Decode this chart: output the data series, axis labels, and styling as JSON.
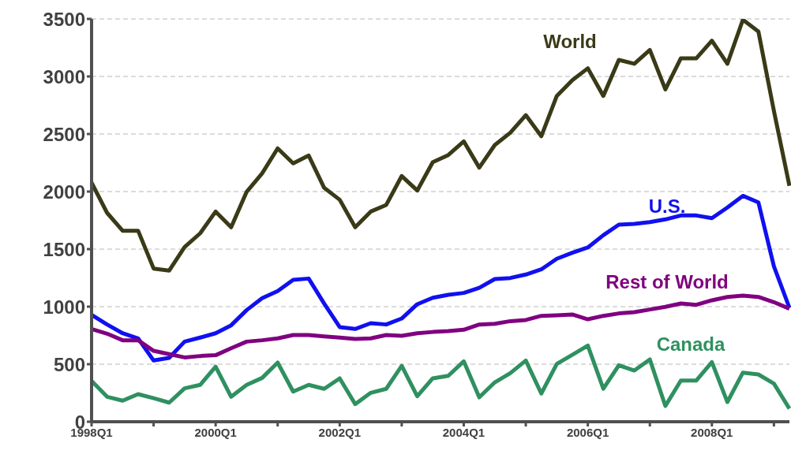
{
  "chart_data": {
    "type": "line",
    "categories": [
      "1998Q1",
      null,
      null,
      null,
      null,
      null,
      null,
      null,
      "2000Q1",
      null,
      null,
      null,
      null,
      null,
      null,
      null,
      "2002Q1",
      null,
      null,
      null,
      null,
      null,
      null,
      null,
      "2004Q1",
      null,
      null,
      null,
      null,
      null,
      null,
      null,
      "2006Q1",
      null,
      null,
      null,
      null,
      null,
      null,
      null,
      "2008Q1",
      null,
      null,
      null,
      null,
      null
    ],
    "ylim": [
      0,
      3500
    ],
    "yticks": [
      0,
      500,
      1000,
      1500,
      2000,
      2500,
      3000,
      3500
    ],
    "grid": "y",
    "legend": false,
    "marker": "none",
    "line_style": "solid",
    "series": [
      {
        "name": "World",
        "color": "#3a3a18",
        "values": [
          2077,
          1815,
          1660,
          1660,
          1331,
          1313,
          1518,
          1637,
          1826,
          1690,
          1998,
          2158,
          2375,
          2245,
          2313,
          2032,
          1929,
          1690,
          1826,
          1884,
          2135,
          2009,
          2255,
          2317,
          2436,
          2208,
          2404,
          2511,
          2664,
          2481,
          2831,
          2968,
          3071,
          2831,
          3144,
          3110,
          3230,
          2888,
          3158,
          3158,
          3311,
          3110,
          3493,
          3390,
          2700,
          2050
        ]
      },
      {
        "name": "U.S.",
        "color": "#1010f0",
        "values": [
          929,
          845,
          769,
          724,
          532,
          555,
          696,
          731,
          769,
          838,
          970,
          1073,
          1135,
          1233,
          1244,
          1027,
          822,
          806,
          856,
          845,
          897,
          1021,
          1077,
          1103,
          1119,
          1164,
          1240,
          1249,
          1279,
          1324,
          1416,
          1468,
          1514,
          1621,
          1712,
          1719,
          1735,
          1758,
          1792,
          1792,
          1769,
          1861,
          1963,
          1906,
          1350,
          990
        ]
      },
      {
        "name": "Rest of World",
        "color": "#800080",
        "values": [
          806,
          765,
          708,
          708,
          616,
          587,
          559,
          571,
          578,
          639,
          696,
          708,
          724,
          753,
          753,
          742,
          731,
          719,
          724,
          753,
          747,
          769,
          780,
          788,
          799,
          845,
          851,
          874,
          884,
          920,
          925,
          932,
          890,
          920,
          941,
          952,
          975,
          998,
          1027,
          1016,
          1055,
          1084,
          1096,
          1084,
          1039,
          982
        ]
      },
      {
        "name": "Canada",
        "color": "#2f9060",
        "values": [
          354,
          217,
          183,
          240,
          205,
          166,
          290,
          320,
          479,
          217,
          320,
          381,
          514,
          262,
          320,
          286,
          377,
          153,
          251,
          286,
          486,
          221,
          377,
          399,
          525,
          212,
          342,
          422,
          532,
          245,
          502,
          582,
          662,
          286,
          491,
          445,
          541,
          137,
          358,
          358,
          518,
          171,
          427,
          411,
          331,
          114
        ]
      }
    ]
  }
}
